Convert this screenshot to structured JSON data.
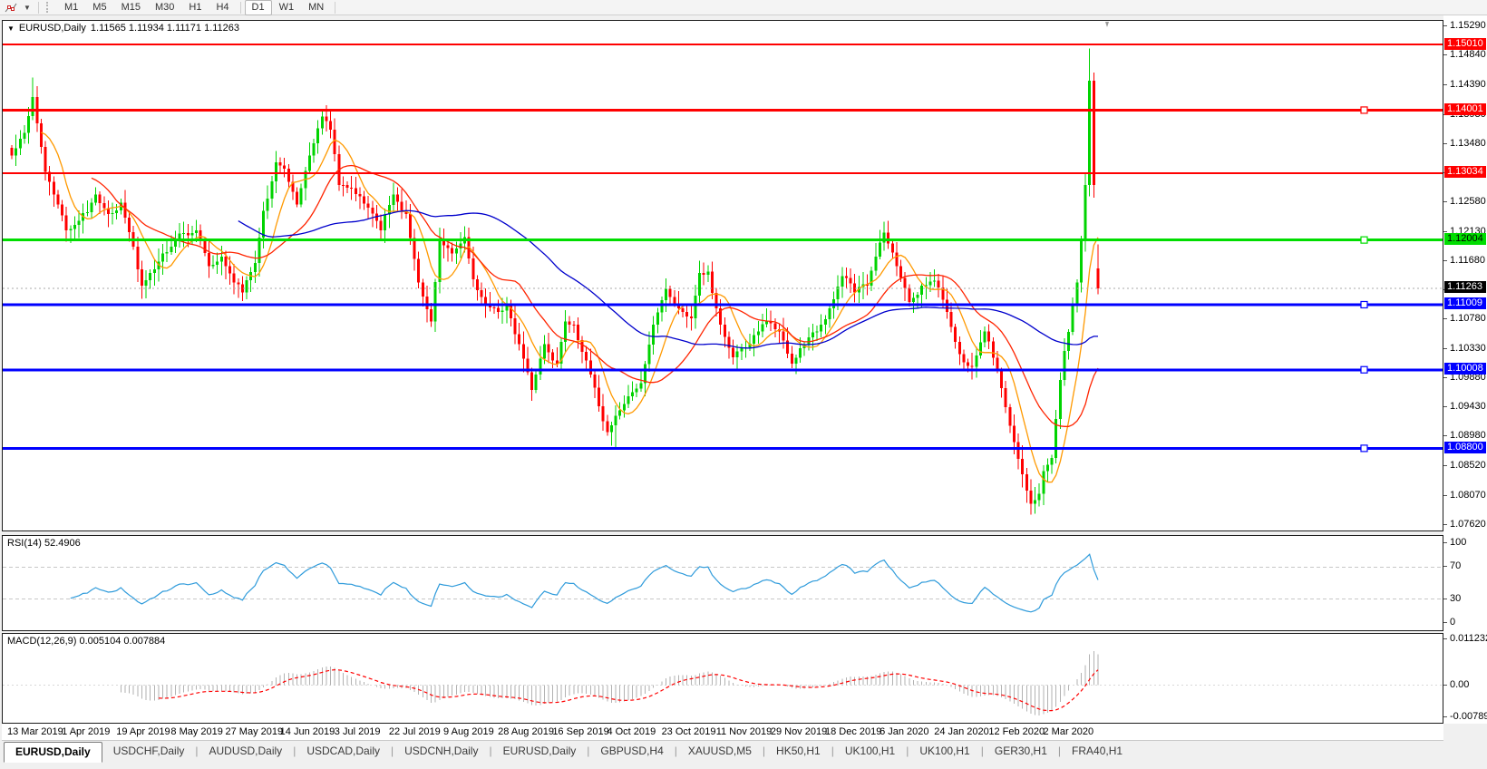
{
  "toolbar": {
    "tool_icon": "polyline-draw-icon",
    "timeframes": [
      "M1",
      "M5",
      "M15",
      "M30",
      "H1",
      "H4",
      "D1",
      "W1",
      "MN"
    ],
    "active_timeframe": "D1",
    "group_break_after": "H4"
  },
  "chart": {
    "title_symbol": "EURUSD,Daily",
    "title_quote": "1.11565 1.11934 1.11171 1.11263"
  },
  "rsi": {
    "header": "RSI(14) 52.4906",
    "axis_labels": [
      "100",
      "70",
      "30",
      "0"
    ]
  },
  "macd": {
    "header": "MACD(12,26,9) 0.005104 0.007884",
    "axis_labels": [
      "0.011232",
      "0.00",
      "-0.007894"
    ]
  },
  "dates": [
    "13 Mar 2019",
    "1 Apr 2019",
    "19 Apr 2019",
    "8 May 2019",
    "27 May 2019",
    "14 Jun 2019",
    "3 Jul 2019",
    "22 Jul 2019",
    "9 Aug 2019",
    "28 Aug 2019",
    "16 Sep 2019",
    "4 Oct 2019",
    "23 Oct 2019",
    "11 Nov 2019",
    "29 Nov 2019",
    "18 Dec 2019",
    "6 Jan 2020",
    "24 Jan 2020",
    "12 Feb 2020",
    "2 Mar 2020"
  ],
  "tabs": {
    "items": [
      "EURUSD,Daily",
      "USDCHF,Daily",
      "AUDUSD,Daily",
      "USDCAD,Daily",
      "USDCNH,Daily",
      "EURUSD,Daily",
      "GBPUSD,H4",
      "XAUUSD,M5",
      "HK50,H1",
      "UK100,H1",
      "UK100,H1",
      "GER30,H1",
      "FRA40,H1"
    ],
    "active_index": 0
  },
  "chart_data": {
    "type": "candlestick",
    "symbol": "EURUSD",
    "timeframe": "Daily",
    "last_ohlc": {
      "open": 1.11565,
      "high": 1.11934,
      "low": 1.11171,
      "close": 1.11263
    },
    "current_price": 1.11263,
    "current_price_label": "1.11263",
    "price_range": {
      "top": 1.1529,
      "bottom": 1.0762
    },
    "price_axis_ticks": [
      "1.15290",
      "1.14840",
      "1.14390",
      "1.13930",
      "1.13480",
      "1.13030",
      "1.12580",
      "1.12130",
      "1.11680",
      "1.11230",
      "1.10780",
      "1.10330",
      "1.09880",
      "1.09430",
      "1.08980",
      "1.08520",
      "1.08070",
      "1.07620"
    ],
    "bars": 260,
    "bars_per_label": 13,
    "up_color": "#00d300",
    "down_color": "#ff0000",
    "close_anchors": [
      [
        0,
        1.133
      ],
      [
        3,
        1.1365
      ],
      [
        5,
        1.142
      ],
      [
        8,
        1.1305
      ],
      [
        11,
        1.1255
      ],
      [
        13,
        1.1215
      ],
      [
        16,
        1.123
      ],
      [
        20,
        1.127
      ],
      [
        23,
        1.124
      ],
      [
        26,
        1.1258
      ],
      [
        29,
        1.119
      ],
      [
        31,
        1.113
      ],
      [
        34,
        1.1155
      ],
      [
        36,
        1.118
      ],
      [
        40,
        1.121
      ],
      [
        44,
        1.1215
      ],
      [
        47,
        1.116
      ],
      [
        50,
        1.1175
      ],
      [
        53,
        1.1135
      ],
      [
        55,
        1.112
      ],
      [
        58,
        1.1165
      ],
      [
        60,
        1.1245
      ],
      [
        63,
        1.132
      ],
      [
        65,
        1.131
      ],
      [
        68,
        1.1255
      ],
      [
        71,
        1.133
      ],
      [
        74,
        1.139
      ],
      [
        76,
        1.137
      ],
      [
        78,
        1.1285
      ],
      [
        81,
        1.128
      ],
      [
        85,
        1.125
      ],
      [
        88,
        1.1215
      ],
      [
        91,
        1.127
      ],
      [
        94,
        1.124
      ],
      [
        97,
        1.1135
      ],
      [
        100,
        1.1075
      ],
      [
        102,
        1.12
      ],
      [
        105,
        1.118
      ],
      [
        108,
        1.1205
      ],
      [
        110,
        1.114
      ],
      [
        113,
        1.11
      ],
      [
        116,
        1.109
      ],
      [
        118,
        1.11
      ],
      [
        121,
        1.104
      ],
      [
        124,
        1.097
      ],
      [
        127,
        1.104
      ],
      [
        130,
        1.101
      ],
      [
        132,
        1.1075
      ],
      [
        134,
        1.107
      ],
      [
        137,
        1.1015
      ],
      [
        140,
        1.0945
      ],
      [
        142,
        1.0905
      ],
      [
        144,
        1.093
      ],
      [
        147,
        1.096
      ],
      [
        150,
        1.098
      ],
      [
        153,
        1.107
      ],
      [
        156,
        1.1125
      ],
      [
        159,
        1.1095
      ],
      [
        162,
        1.108
      ],
      [
        164,
        1.115
      ],
      [
        166,
        1.1152
      ],
      [
        169,
        1.107
      ],
      [
        172,
        1.102
      ],
      [
        175,
        1.1035
      ],
      [
        178,
        1.106
      ],
      [
        180,
        1.1075
      ],
      [
        183,
        1.106
      ],
      [
        186,
        1.101
      ],
      [
        189,
        1.104
      ],
      [
        192,
        1.106
      ],
      [
        195,
        1.1095
      ],
      [
        198,
        1.1145
      ],
      [
        201,
        1.112
      ],
      [
        204,
        1.113
      ],
      [
        206,
        1.1175
      ],
      [
        208,
        1.1212
      ],
      [
        211,
        1.116
      ],
      [
        214,
        1.1105
      ],
      [
        217,
        1.113
      ],
      [
        220,
        1.1138
      ],
      [
        223,
        1.109
      ],
      [
        226,
        1.1025
      ],
      [
        229,
        1.1005
      ],
      [
        232,
        1.106
      ],
      [
        235,
        1.1
      ],
      [
        238,
        1.0915
      ],
      [
        241,
        1.084
      ],
      [
        243,
        1.0795
      ],
      [
        245,
        1.081
      ],
      [
        246,
        1.0845
      ],
      [
        248,
        1.0865
      ],
      [
        250,
        1.0985
      ],
      [
        251,
        1.103
      ],
      [
        253,
        1.11
      ],
      [
        254,
        1.1135
      ],
      [
        255,
        1.12
      ],
      [
        256,
        1.1285
      ],
      [
        257,
        1.1445
      ],
      [
        258,
        1.1285
      ],
      [
        259,
        1.11263
      ]
    ],
    "wick_overrides": {
      "5": {
        "high": 1.145
      },
      "31": {
        "low": 1.111
      },
      "144": {
        "low": 1.0879
      },
      "243": {
        "low": 1.0778
      },
      "257": {
        "high": 1.1495
      },
      "259": {
        "open": 1.11565,
        "high": 1.11934,
        "low": 1.11171,
        "close": 1.11263
      }
    },
    "horizontal_lines": [
      {
        "price": 1.1501,
        "label": "1.15010",
        "color": "#ff0000",
        "text_color": "#ffffff",
        "width": 2,
        "handle": false
      },
      {
        "price": 1.14001,
        "label": "1.14001",
        "color": "#ff0000",
        "text_color": "#ffffff",
        "width": 3,
        "handle": true
      },
      {
        "price": 1.13034,
        "label": "1.13034",
        "color": "#ff0000",
        "text_color": "#ffffff",
        "width": 2,
        "handle": false
      },
      {
        "price": 1.12004,
        "label": "1.12004",
        "color": "#00dd00",
        "text_color": "#000000",
        "width": 3,
        "handle": true
      },
      {
        "price": 1.11009,
        "label": "1.11009",
        "color": "#0000ff",
        "text_color": "#ffffff",
        "width": 3,
        "handle": true
      },
      {
        "price": 1.10008,
        "label": "1.10008",
        "color": "#0000ff",
        "text_color": "#ffffff",
        "width": 3,
        "handle": true
      },
      {
        "price": 1.088,
        "label": "1.08800",
        "color": "#0000ff",
        "text_color": "#ffffff",
        "width": 3,
        "handle": true
      }
    ],
    "moving_averages": [
      {
        "period": 8,
        "color": "#ff9900"
      },
      {
        "period": 20,
        "color": "#ff2400"
      },
      {
        "period": 55,
        "color": "#0000cc"
      }
    ],
    "rsi": {
      "period": 14,
      "value": 52.4906,
      "scale": [
        0,
        100
      ],
      "levels": [
        70,
        30
      ],
      "color": "#2f9bdb"
    },
    "macd": {
      "fast": 12,
      "slow": 26,
      "signal_period": 9,
      "value": 0.005104,
      "signal_value": 0.007884,
      "scale_top": 0.011232,
      "scale_bottom": -0.007894,
      "histogram_color": "#b2b2b2",
      "signal_color": "#ff0000"
    }
  }
}
